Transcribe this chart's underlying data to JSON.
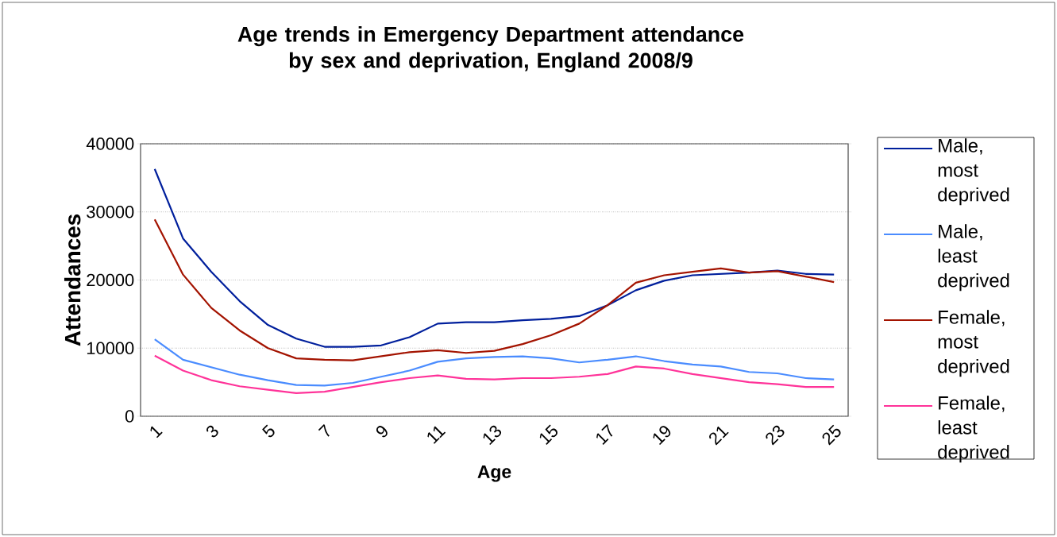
{
  "chart_data": {
    "type": "line",
    "title": "Age trends in Emergency Department attendance by sex and deprivation, England 2008/9",
    "xlabel": "Age",
    "ylabel": "Attendances",
    "categories": [
      "1",
      null,
      "3",
      null,
      "5",
      null,
      "7",
      null,
      "9",
      null,
      "11",
      null,
      "13",
      null,
      "15",
      null,
      "17",
      null,
      "19",
      null,
      "21",
      null,
      "23",
      null,
      "25"
    ],
    "ylim": [
      0,
      40000
    ],
    "yticks": [
      0,
      10000,
      20000,
      30000,
      40000
    ],
    "grid": "y",
    "legend": "right",
    "marker": "none",
    "line_style": "solid",
    "series": [
      {
        "name": "Male, most deprived",
        "color": "#001f9c",
        "values": [
          36300,
          26100,
          21200,
          16900,
          13400,
          11400,
          10200,
          10200,
          10400,
          11600,
          13600,
          13800,
          13800,
          14100,
          14300,
          14700,
          16300,
          18500,
          19900,
          20700,
          20900,
          21100,
          21400,
          20900,
          20800
        ]
      },
      {
        "name": "Male, least deprived",
        "color": "#4a8cff",
        "values": [
          11300,
          8300,
          7200,
          6100,
          5300,
          4600,
          4500,
          4900,
          5800,
          6700,
          8000,
          8500,
          8700,
          8800,
          8500,
          7900,
          8300,
          8800,
          8100,
          7600,
          7300,
          6500,
          6300,
          5600,
          5400
        ]
      },
      {
        "name": "Female, most deprived",
        "color": "#a31300",
        "values": [
          28900,
          20800,
          15900,
          12600,
          10000,
          8500,
          8300,
          8200,
          8800,
          9400,
          9700,
          9300,
          9600,
          10600,
          11900,
          13600,
          16300,
          19600,
          20700,
          21200,
          21700,
          21100,
          21300,
          20500,
          19700
        ]
      },
      {
        "name": "Female, least deprived",
        "color": "#ff3399",
        "values": [
          8900,
          6700,
          5300,
          4400,
          3900,
          3400,
          3600,
          4300,
          5000,
          5600,
          6000,
          5500,
          5400,
          5600,
          5600,
          5800,
          6200,
          7300,
          7000,
          6200,
          5600,
          5000,
          4700,
          4300,
          4300
        ]
      }
    ]
  }
}
